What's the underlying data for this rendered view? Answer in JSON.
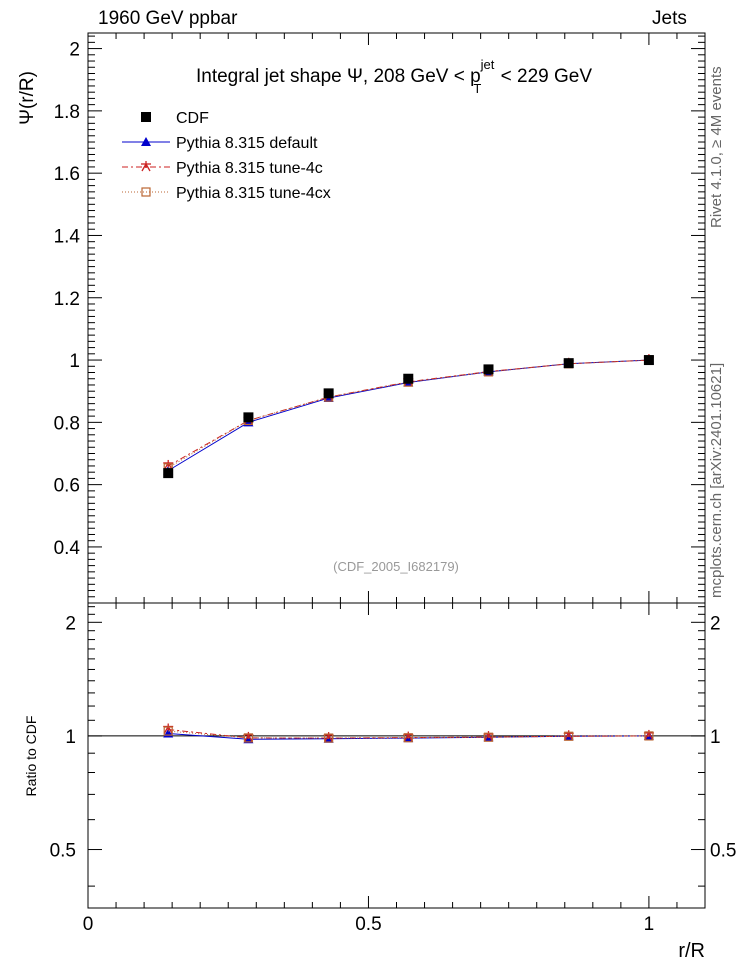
{
  "header": {
    "left": "1960 GeV ppbar",
    "right": "Jets"
  },
  "side_labels": {
    "rivet": "Rivet 4.1.0, ≥ 4M events",
    "mcplots": "mcplots.cern.ch [arXiv:2401.10621]"
  },
  "chart_data": {
    "type": "line",
    "title_prefix": "Integral jet shape  Ψ, 208 GeV < p",
    "title_sup": "jet",
    "title_sub": "T",
    "title_suffix": "< 229 GeV",
    "analysis_label": "(CDF_2005_I682179)",
    "xlabel": "r/R",
    "ylabel": "Ψ(r/R)",
    "ratio_ylabel": "Ratio to CDF",
    "xlim": [
      0,
      1.1
    ],
    "ylim": [
      0.22,
      2.05
    ],
    "ratio_ylim": [
      0.35,
      2.25
    ],
    "x_ticks": [
      0,
      0.5,
      1
    ],
    "x_tick_labels": [
      "0",
      "0.5",
      "1"
    ],
    "y_ticks": [
      0.4,
      0.6,
      0.8,
      1,
      1.2,
      1.4,
      1.6,
      1.8,
      2
    ],
    "y_tick_labels": [
      "0.4",
      "0.6",
      "0.8",
      "1",
      "1.2",
      "1.4",
      "1.6",
      "1.8",
      "2"
    ],
    "ratio_y_ticks": [
      0.5,
      1,
      2
    ],
    "ratio_y_tick_labels": [
      "0.5",
      "1",
      "2"
    ],
    "x": [
      0.143,
      0.286,
      0.429,
      0.571,
      0.714,
      0.857,
      1.0
    ],
    "data": {
      "name": "CDF",
      "values": [
        0.637,
        0.816,
        0.893,
        0.94,
        0.97,
        0.99,
        1.0
      ],
      "color": "#000000"
    },
    "series": [
      {
        "name": "Pythia 8.315 default",
        "values": [
          0.645,
          0.8,
          0.878,
          0.928,
          0.962,
          0.988,
          1.0
        ],
        "ratio": [
          1.015,
          0.98,
          0.983,
          0.987,
          0.992,
          0.998,
          1.0
        ],
        "color": "#0000cc",
        "marker": "triangle",
        "dash": ""
      },
      {
        "name": "Pythia 8.315 tune-4c",
        "values": [
          0.66,
          0.806,
          0.881,
          0.93,
          0.963,
          0.988,
          1.0
        ],
        "ratio": [
          1.04,
          0.988,
          0.987,
          0.99,
          0.993,
          0.998,
          1.0
        ],
        "color": "#cc2222",
        "marker": "star",
        "dash": "6,3,2,3"
      },
      {
        "name": "Pythia 8.315 tune-4cx",
        "values": [
          0.654,
          0.806,
          0.881,
          0.929,
          0.962,
          0.988,
          1.0
        ],
        "ratio": [
          1.03,
          0.988,
          0.987,
          0.989,
          0.992,
          0.998,
          1.0
        ],
        "color": "#bb6633",
        "marker": "open-square",
        "dash": "1,2"
      }
    ]
  }
}
